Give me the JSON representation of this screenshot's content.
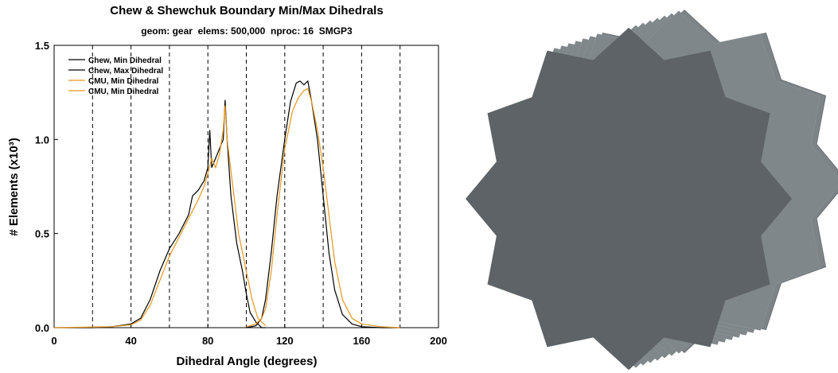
{
  "chart_data": {
    "type": "line",
    "title": "Chew & Shewchuk Boundary Min/Max Dihedrals",
    "subtitle": "geom: gear  elems: 500,000  nproc: 16  SMGP3",
    "x_label": "Dihedral Angle (degrees)",
    "y_label": "# Elements (x10³)",
    "xlim": [
      0,
      200
    ],
    "ylim": [
      0,
      1.5
    ],
    "xticks": [
      0,
      40,
      80,
      120,
      160,
      200
    ],
    "yticks": [
      {
        "value": 0,
        "label": "0.0"
      },
      0.5,
      {
        "value": 1,
        "label": "1.0"
      },
      1.5
    ],
    "xgrid": [
      20,
      40,
      60,
      80,
      100,
      120,
      140,
      160,
      180
    ],
    "legend": "upper left",
    "series": [
      {
        "name": "Chew, Min Dihedral",
        "color": "#000000",
        "x": [
          0,
          10,
          20,
          30,
          40,
          45,
          50,
          55,
          60,
          65,
          70,
          72,
          75,
          78,
          80,
          81,
          82,
          84,
          86,
          88,
          89,
          90,
          92,
          95,
          98,
          100,
          102,
          105,
          108,
          110
        ],
        "values": [
          0,
          0,
          0,
          0.005,
          0.02,
          0.05,
          0.15,
          0.3,
          0.42,
          0.5,
          0.6,
          0.7,
          0.73,
          0.78,
          0.85,
          1.05,
          0.85,
          0.9,
          0.95,
          1.0,
          1.21,
          1.0,
          0.7,
          0.45,
          0.3,
          0.18,
          0.08,
          0.03,
          0,
          0
        ]
      },
      {
        "name": "Chew, Max Dihedral",
        "color": "#000000",
        "x": [
          100,
          105,
          108,
          110,
          113,
          116,
          120,
          123,
          126,
          128,
          130,
          132,
          134,
          137,
          140,
          143,
          146,
          150,
          155,
          160,
          170,
          180
        ],
        "values": [
          0,
          0.01,
          0.05,
          0.15,
          0.4,
          0.7,
          1.0,
          1.2,
          1.3,
          1.31,
          1.29,
          1.31,
          1.2,
          1.0,
          0.7,
          0.4,
          0.2,
          0.07,
          0.02,
          0.005,
          0,
          0
        ]
      },
      {
        "name": "CMU, Min Dihedral",
        "color": "#e8961e",
        "x": [
          0,
          30,
          40,
          45,
          50,
          55,
          60,
          65,
          70,
          75,
          78,
          80,
          82,
          84,
          86,
          88,
          89,
          90,
          93,
          96,
          100,
          103,
          106,
          110
        ],
        "values": [
          0,
          0.005,
          0.015,
          0.04,
          0.12,
          0.25,
          0.38,
          0.48,
          0.58,
          0.68,
          0.75,
          0.82,
          0.9,
          0.85,
          0.92,
          1.05,
          1.18,
          1.0,
          0.75,
          0.5,
          0.3,
          0.15,
          0.05,
          0.01
        ]
      },
      {
        "name": "CMU, Min Dihedral",
        "color": "#e8961e",
        "x": [
          100,
          105,
          108,
          110,
          113,
          116,
          120,
          124,
          127,
          130,
          132,
          134,
          137,
          140,
          143,
          146,
          150,
          155,
          160,
          170,
          180
        ],
        "values": [
          0.005,
          0.02,
          0.05,
          0.1,
          0.3,
          0.6,
          0.95,
          1.15,
          1.22,
          1.26,
          1.27,
          1.2,
          1.05,
          0.85,
          0.6,
          0.35,
          0.15,
          0.05,
          0.02,
          0.005,
          0
        ]
      }
    ]
  }
}
